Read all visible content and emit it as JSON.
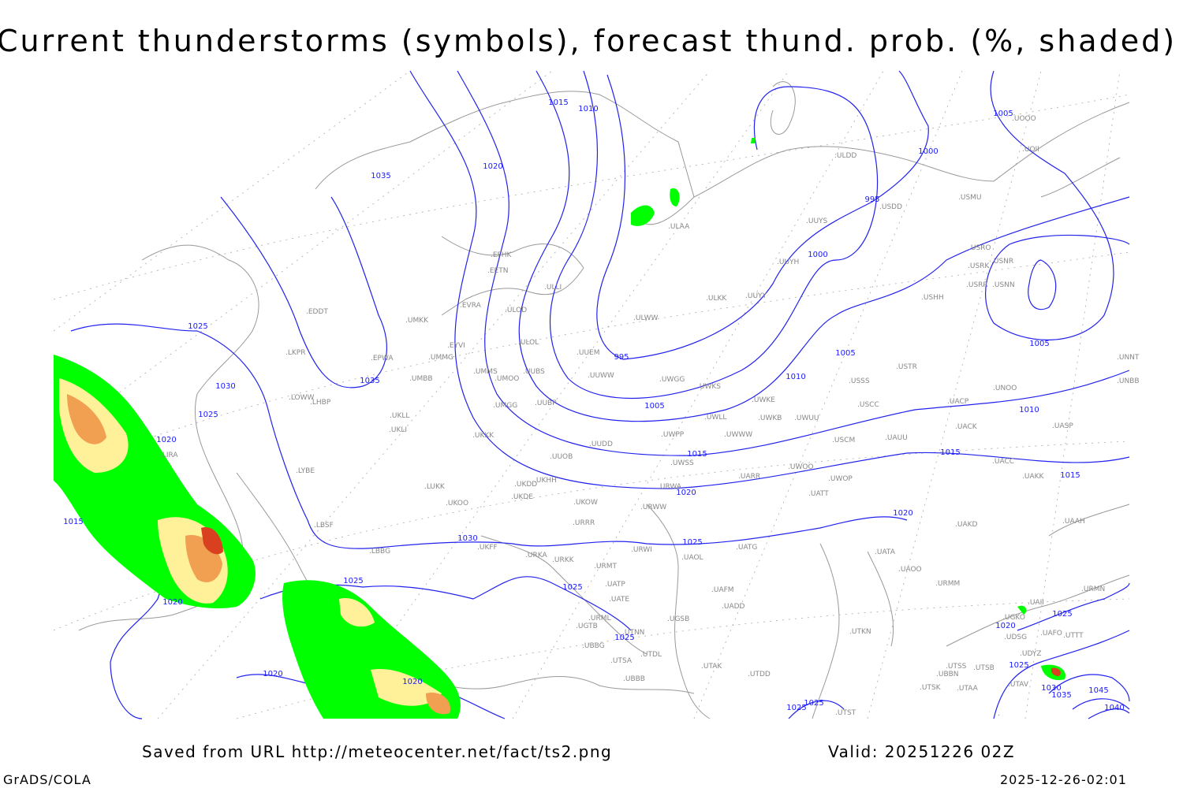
{
  "title": "Current thunderstorms (symbols), forecast thund. prob. (%, shaded)",
  "footer": {
    "source": "Saved from URL http://meteocenter.net/fact/ts2.png",
    "valid": "Valid: 20251226 02Z",
    "software": "GrADS/COLA",
    "timestamp": "2025-12-26-02:01"
  },
  "colors": {
    "isobar": "#2222ee",
    "coastline": "#999999",
    "prob_low": "#00ff00",
    "prob_mid": "#fff09a",
    "prob_high": "#f0a050",
    "prob_max": "#d84020"
  },
  "stations": [
    "ULDD",
    "USDD",
    "USMU",
    "UOII",
    "UOOO",
    "UUYS",
    "ULAA",
    "EFHK",
    "EETN",
    "ULLI",
    "EVRA",
    "ULOD",
    "ULWW",
    "ULKK",
    "UUYY",
    "UUYH",
    "USRO",
    "USRK",
    "USNR",
    "USRR",
    "USNN",
    "USHH",
    "EDDT",
    "UMKK",
    "ULOL",
    "UUEM",
    "EYVI",
    "EPWA",
    "LKPR",
    "UMMG",
    "UUWW",
    "UWGG",
    "UWKS",
    "USSS",
    "USTR",
    "UNOO",
    "UNNT",
    "UNBB",
    "UMMS",
    "UMOO",
    "UUBS",
    "UMBB",
    "LOWW",
    "UMGG",
    "UUBP",
    "UWKE",
    "USCC",
    "UACP",
    "UWLL",
    "UWKB",
    "UWUU",
    "UKLL",
    "UKLI",
    "LHBP",
    "UACK",
    "UASP",
    "UWPP",
    "UWWW",
    "USCM",
    "UAUU",
    "UKKK",
    "UUDD",
    "UUOB",
    "LIRA",
    "LYBE",
    "UWSS",
    "UACC",
    "UAKK",
    "UKHH",
    "LUKK",
    "UKDD",
    "UKDE",
    "UARR",
    "UWOO",
    "UWOP",
    "URWA",
    "UATT",
    "UKOO",
    "UKOW",
    "URWW",
    "UAKD",
    "UAAH",
    "LBSF",
    "URRR",
    "UKFF",
    "LBBG",
    "URKA",
    "URKK",
    "URWI",
    "UATG",
    "UATA",
    "URMT",
    "UAOL",
    "UAOO",
    "URMM",
    "UATP",
    "UAFM",
    "URMN",
    "UATE",
    "UADD",
    "UAII",
    "UGKO",
    "URML",
    "UGSB",
    "UGTB",
    "UTNN",
    "UTKN",
    "UAFO",
    "UTTT",
    "UDSG",
    "UBBG",
    "UTDL",
    "UDYZ",
    "UTSA",
    "UTSS",
    "UTSB",
    "UBBN",
    "UBBB",
    "UTAK",
    "UTDD",
    "UTAV",
    "UTSK",
    "UTAA",
    "UTST"
  ],
  "isobar_labels": [
    "1015",
    "1010",
    "1020",
    "1035",
    "1000",
    "1005",
    "995",
    "1000",
    "1005",
    "1005",
    "1010",
    "1010",
    "1025",
    "1030",
    "1035",
    "1025",
    "1020",
    "995",
    "1005",
    "1015",
    "1015",
    "1015",
    "1020",
    "1020",
    "1025",
    "1030",
    "1015",
    "1020",
    "1025",
    "1025",
    "1025",
    "1020",
    "1020",
    "1020",
    "1025",
    "1025",
    "1030",
    "1035",
    "1045",
    "1040",
    "1025",
    "1025"
  ]
}
